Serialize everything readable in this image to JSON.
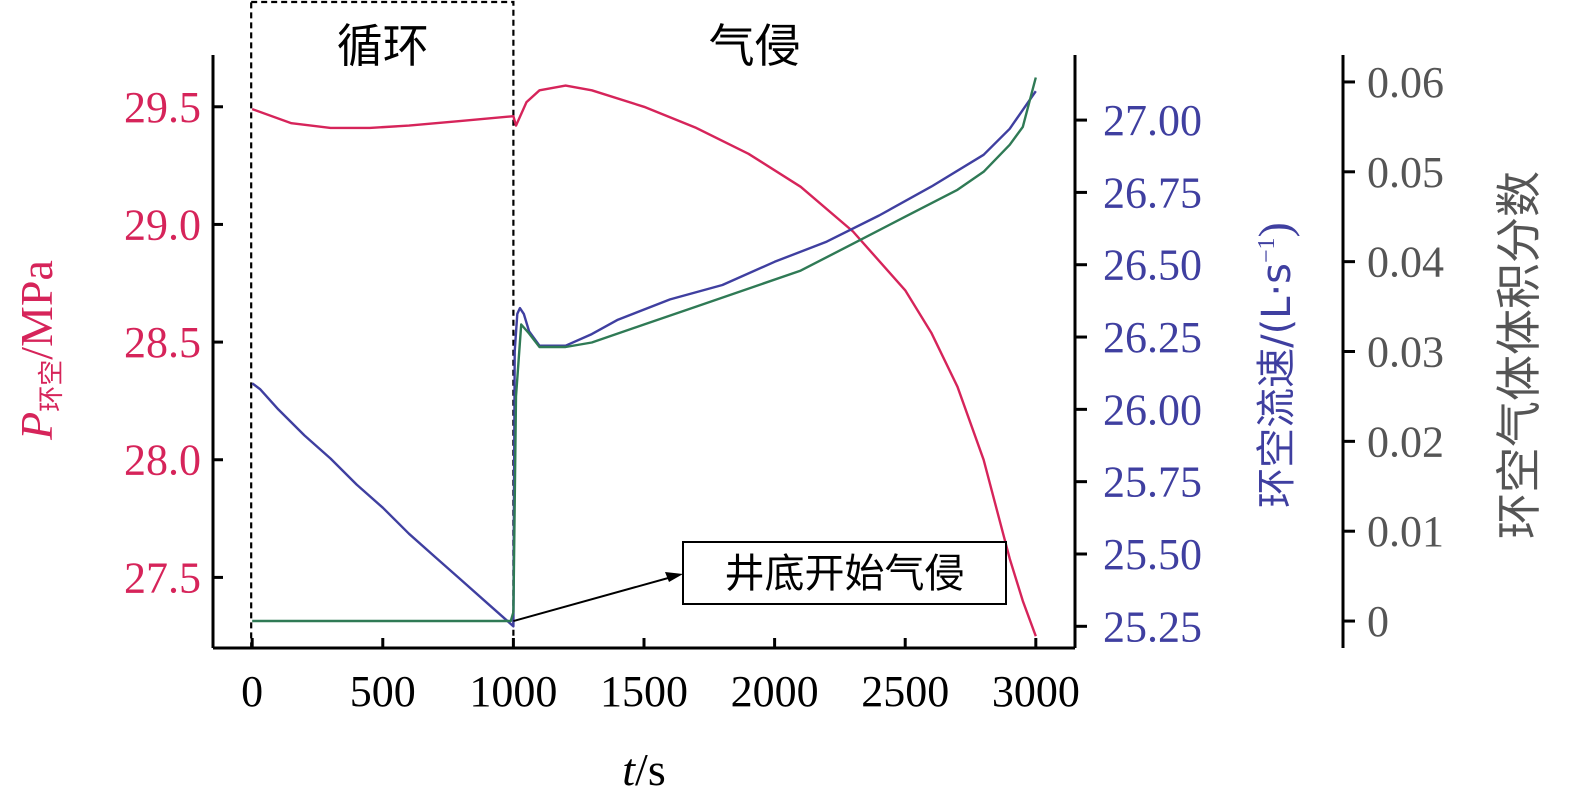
{
  "chart_data": {
    "type": "line",
    "x_axis": {
      "label_italic": "t",
      "label_rest": "/s",
      "range": [
        -150,
        3150
      ],
      "ticks": [
        0,
        500,
        1000,
        1500,
        2000,
        2500,
        3000
      ],
      "tick_labels": [
        "0",
        "500",
        "1000",
        "1500",
        "2000",
        "2500",
        "3000"
      ]
    },
    "y_axes": [
      {
        "key": "pressure",
        "label_italic": "P",
        "label_sub": "环空",
        "label_rest": "/MPa",
        "color": "#d6245a",
        "range": [
          27.2,
          29.72
        ],
        "ticks": [
          27.5,
          28.0,
          28.5,
          29.0,
          29.5
        ],
        "tick_labels": [
          "27.5",
          "28.0",
          "28.5",
          "29.0",
          "29.5"
        ]
      },
      {
        "key": "flow",
        "label_main": "环空流速/(L·s",
        "label_sup": "−1",
        "label_close": ")",
        "color": "#3f3fa0",
        "range": [
          25.175,
          27.225
        ],
        "ticks": [
          25.25,
          25.5,
          25.75,
          26.0,
          26.25,
          26.5,
          26.75,
          27.0
        ],
        "tick_labels": [
          "25.25",
          "25.50",
          "25.75",
          "26.00",
          "26.25",
          "26.50",
          "26.75",
          "27.00"
        ]
      },
      {
        "key": "gas",
        "label": "环空气体体积分数",
        "color": "#2f7a55",
        "range": [
          -0.003,
          0.063
        ],
        "ticks": [
          0,
          0.01,
          0.02,
          0.03,
          0.04,
          0.05,
          0.06
        ],
        "tick_labels": [
          "0",
          "0.01",
          "0.02",
          "0.03",
          "0.04",
          "0.05",
          "0.06"
        ]
      }
    ],
    "regions": [
      {
        "label": "循环",
        "x": [
          0,
          1000
        ]
      },
      {
        "label": "气侵",
        "x": [
          1000,
          3000
        ]
      }
    ],
    "annotation": {
      "text": "井底开始气侵",
      "target": [
        1000,
        0
      ]
    },
    "series": [
      {
        "axis": "pressure",
        "color": "#d6245a",
        "x": [
          0,
          150,
          300,
          450,
          600,
          800,
          1000,
          1010,
          1050,
          1100,
          1200,
          1300,
          1500,
          1700,
          1900,
          2100,
          2300,
          2500,
          2600,
          2700,
          2800,
          2900,
          2950,
          3000
        ],
        "y": [
          29.49,
          29.43,
          29.41,
          29.41,
          29.42,
          29.44,
          29.46,
          29.42,
          29.52,
          29.57,
          29.59,
          29.57,
          29.5,
          29.41,
          29.3,
          29.16,
          28.97,
          28.72,
          28.54,
          28.31,
          28.0,
          27.58,
          27.4,
          27.25
        ]
      },
      {
        "axis": "flow",
        "color": "#3f3fa0",
        "x": [
          0,
          30,
          100,
          200,
          300,
          400,
          500,
          600,
          700,
          800,
          900,
          1000,
          1005,
          1015,
          1025,
          1040,
          1060,
          1100,
          1200,
          1300,
          1400,
          1600,
          1800,
          2000,
          2200,
          2400,
          2600,
          2800,
          2900,
          3000
        ],
        "y": [
          26.09,
          26.07,
          26.0,
          25.91,
          25.83,
          25.74,
          25.66,
          25.57,
          25.49,
          25.41,
          25.33,
          25.25,
          26.2,
          26.33,
          26.35,
          26.33,
          26.27,
          26.22,
          26.22,
          26.26,
          26.31,
          26.38,
          26.43,
          26.51,
          26.58,
          26.67,
          26.77,
          26.88,
          26.97,
          27.1
        ]
      },
      {
        "axis": "gas",
        "color": "#2f7a55",
        "x": [
          0,
          500,
          990,
          1000,
          1010,
          1030,
          1060,
          1100,
          1200,
          1300,
          1500,
          1700,
          1900,
          2100,
          2300,
          2500,
          2700,
          2800,
          2900,
          2950,
          3000
        ],
        "y": [
          0,
          0,
          0,
          0.001,
          0.025,
          0.033,
          0.032,
          0.0305,
          0.0305,
          0.031,
          0.033,
          0.035,
          0.037,
          0.039,
          0.042,
          0.045,
          0.048,
          0.05,
          0.053,
          0.055,
          0.0605
        ]
      }
    ]
  }
}
